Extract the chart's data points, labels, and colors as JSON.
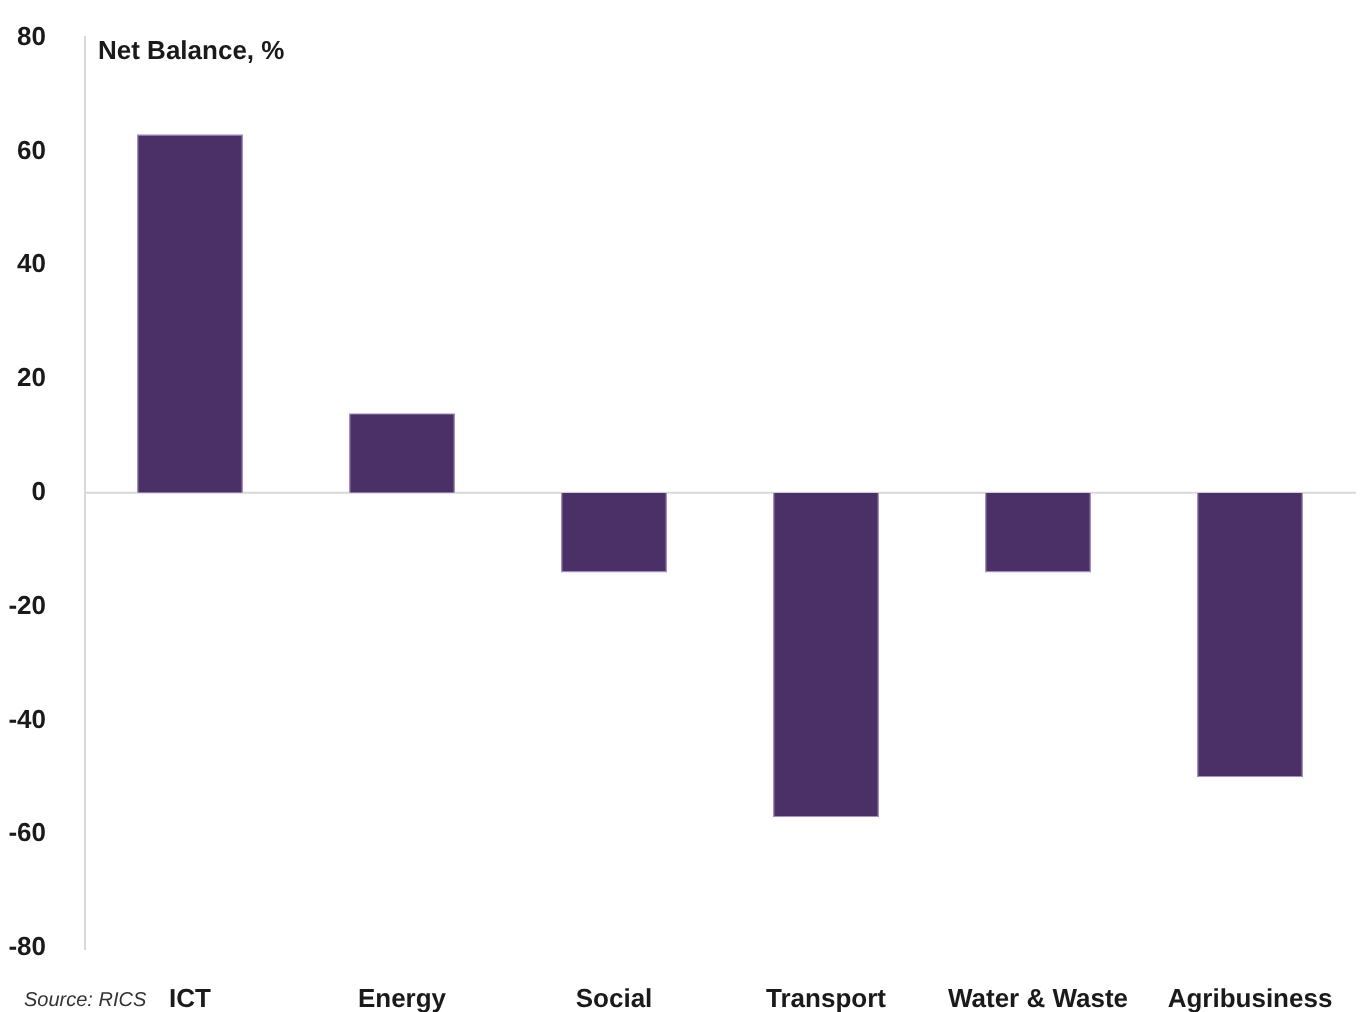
{
  "chart_data": {
    "type": "bar",
    "ylabel": "Net Balance, %",
    "categories": [
      "ICT",
      "Energy",
      "Social",
      "Transport",
      "Water & Waste",
      "Agribusiness"
    ],
    "values": [
      63,
      14,
      -14,
      -57,
      -14,
      -50
    ],
    "color": "#4b3068",
    "ylim": [
      -80,
      80
    ],
    "yticks": [
      -80,
      -60,
      -40,
      -20,
      0,
      20,
      40,
      60,
      80
    ],
    "annotations": [
      "Source: RICS"
    ]
  }
}
